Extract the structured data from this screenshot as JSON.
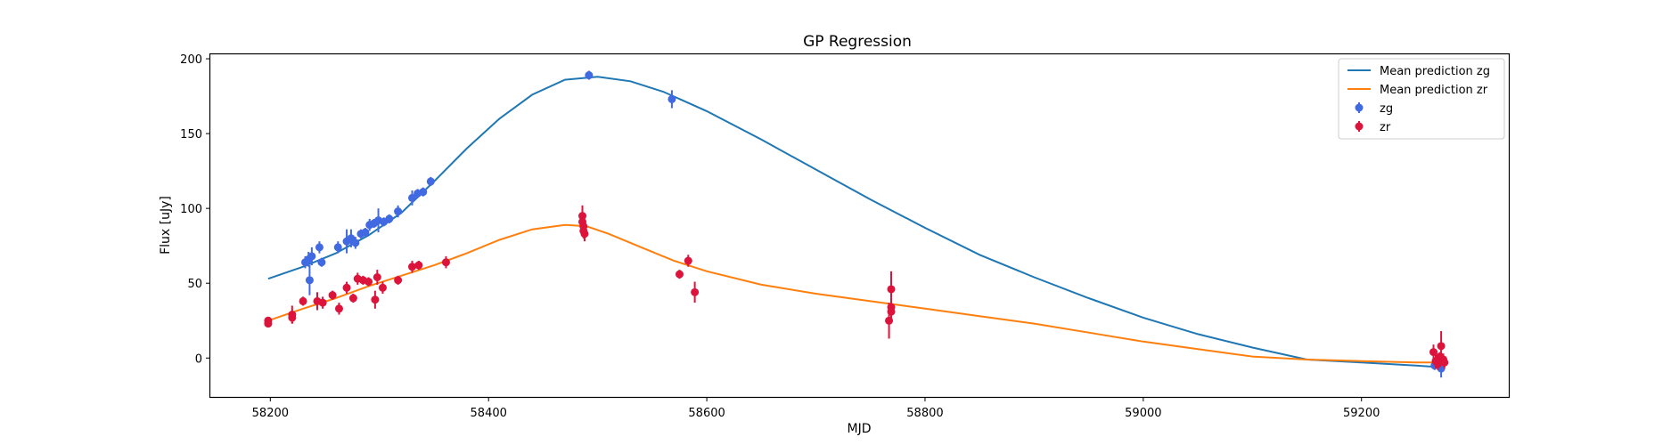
{
  "chart_data": {
    "type": "scatter",
    "title": "GP Regression",
    "xlabel": "MJD",
    "ylabel": "Flux [uJy]",
    "xlim": [
      58145,
      59335
    ],
    "ylim": [
      -26,
      203
    ],
    "x_ticks": [
      58200,
      58400,
      58600,
      58800,
      59000,
      59200
    ],
    "y_ticks": [
      0,
      50,
      100,
      150,
      200
    ],
    "grid": false,
    "legend_position": "top-right",
    "colors": {
      "mean_zg": "#1f77b4",
      "mean_zr": "#ff7f0e",
      "zg": "#4169e1",
      "zr": "#dc143c"
    },
    "lines": [
      {
        "name": "Mean prediction zg",
        "color": "#1f77b4",
        "x": [
          58198,
          58230,
          58260,
          58290,
          58320,
          58350,
          58380,
          58410,
          58440,
          58470,
          58500,
          58530,
          58560,
          58600,
          58650,
          58700,
          58750,
          58800,
          58850,
          58900,
          58950,
          59000,
          59050,
          59100,
          59150,
          59200,
          59250,
          59270
        ],
        "y": [
          53,
          61,
          70,
          82,
          97,
          118,
          140,
          160,
          176,
          186,
          188,
          185,
          178,
          165,
          146,
          126,
          106,
          87,
          69,
          54,
          40,
          27,
          16,
          7,
          -1,
          -3,
          -5,
          -6
        ]
      },
      {
        "name": "Mean prediction zr",
        "color": "#ff7f0e",
        "x": [
          58198,
          58230,
          58260,
          58290,
          58320,
          58350,
          58380,
          58410,
          58440,
          58470,
          58490,
          58510,
          58540,
          58570,
          58600,
          58650,
          58700,
          58750,
          58800,
          58850,
          58900,
          58950,
          59000,
          59050,
          59100,
          59150,
          59200,
          59250,
          59270
        ],
        "y": [
          25,
          33,
          40,
          48,
          55,
          62,
          70,
          79,
          86,
          89,
          88,
          83,
          74,
          65,
          58,
          49,
          43,
          38,
          33,
          28,
          23,
          17,
          11,
          6,
          1,
          -1,
          -2,
          -3,
          -3
        ]
      }
    ],
    "series": [
      {
        "name": "zg",
        "color": "#4169e1",
        "points": [
          {
            "x": 58232,
            "y": 64,
            "err": 4
          },
          {
            "x": 58235,
            "y": 66,
            "err": 5
          },
          {
            "x": 58238,
            "y": 68,
            "err": 6
          },
          {
            "x": 58236,
            "y": 52,
            "err": 10
          },
          {
            "x": 58245,
            "y": 74,
            "err": 4
          },
          {
            "x": 58247,
            "y": 64,
            "err": 3
          },
          {
            "x": 58262,
            "y": 74,
            "err": 4
          },
          {
            "x": 58270,
            "y": 78,
            "err": 8
          },
          {
            "x": 58274,
            "y": 80,
            "err": 6
          },
          {
            "x": 58278,
            "y": 77,
            "err": 4
          },
          {
            "x": 58283,
            "y": 83,
            "err": 3
          },
          {
            "x": 58287,
            "y": 84,
            "err": 3
          },
          {
            "x": 58291,
            "y": 89,
            "err": 4
          },
          {
            "x": 58295,
            "y": 90,
            "err": 3
          },
          {
            "x": 58299,
            "y": 92,
            "err": 8
          },
          {
            "x": 58304,
            "y": 91,
            "err": 3
          },
          {
            "x": 58309,
            "y": 93,
            "err": 3
          },
          {
            "x": 58317,
            "y": 98,
            "err": 4
          },
          {
            "x": 58330,
            "y": 107,
            "err": 5
          },
          {
            "x": 58335,
            "y": 110,
            "err": 3
          },
          {
            "x": 58340,
            "y": 111,
            "err": 3
          },
          {
            "x": 58347,
            "y": 118,
            "err": 3
          },
          {
            "x": 58492,
            "y": 189,
            "err": 3
          },
          {
            "x": 58568,
            "y": 173,
            "err": 6
          },
          {
            "x": 59267,
            "y": -5,
            "err": 3
          },
          {
            "x": 59273,
            "y": -7,
            "err": 6
          }
        ]
      },
      {
        "name": "zr",
        "color": "#dc143c",
        "points": [
          {
            "x": 58198,
            "y": 25,
            "err": 2
          },
          {
            "x": 58198,
            "y": 23,
            "err": 2
          },
          {
            "x": 58220,
            "y": 29,
            "err": 6
          },
          {
            "x": 58220,
            "y": 27,
            "err": 4
          },
          {
            "x": 58230,
            "y": 38,
            "err": 3
          },
          {
            "x": 58243,
            "y": 38,
            "err": 6
          },
          {
            "x": 58248,
            "y": 37,
            "err": 4
          },
          {
            "x": 58257,
            "y": 42,
            "err": 3
          },
          {
            "x": 58263,
            "y": 33,
            "err": 4
          },
          {
            "x": 58270,
            "y": 47,
            "err": 4
          },
          {
            "x": 58276,
            "y": 40,
            "err": 3
          },
          {
            "x": 58280,
            "y": 53,
            "err": 4
          },
          {
            "x": 58285,
            "y": 52,
            "err": 3
          },
          {
            "x": 58290,
            "y": 51,
            "err": 3
          },
          {
            "x": 58296,
            "y": 39,
            "err": 6
          },
          {
            "x": 58298,
            "y": 54,
            "err": 5
          },
          {
            "x": 58303,
            "y": 47,
            "err": 4
          },
          {
            "x": 58317,
            "y": 52,
            "err": 3
          },
          {
            "x": 58330,
            "y": 61,
            "err": 4
          },
          {
            "x": 58336,
            "y": 62,
            "err": 3
          },
          {
            "x": 58361,
            "y": 64,
            "err": 4
          },
          {
            "x": 58486,
            "y": 95,
            "err": 7
          },
          {
            "x": 58486,
            "y": 91,
            "err": 6
          },
          {
            "x": 58487,
            "y": 88,
            "err": 5
          },
          {
            "x": 58487,
            "y": 85,
            "err": 5
          },
          {
            "x": 58488,
            "y": 83,
            "err": 5
          },
          {
            "x": 58575,
            "y": 56,
            "err": 3
          },
          {
            "x": 58583,
            "y": 65,
            "err": 4
          },
          {
            "x": 58589,
            "y": 44,
            "err": 7
          },
          {
            "x": 58769,
            "y": 46,
            "err": 12
          },
          {
            "x": 58769,
            "y": 34,
            "err": 7
          },
          {
            "x": 58769,
            "y": 31,
            "err": 6
          },
          {
            "x": 58767,
            "y": 25,
            "err": 12
          },
          {
            "x": 59266,
            "y": 4,
            "err": 5
          },
          {
            "x": 59268,
            "y": -2,
            "err": 5
          },
          {
            "x": 59270,
            "y": -4,
            "err": 4
          },
          {
            "x": 59273,
            "y": 8,
            "err": 10
          },
          {
            "x": 59275,
            "y": -1,
            "err": 4
          },
          {
            "x": 59276,
            "y": -3,
            "err": 4
          },
          {
            "x": 59272,
            "y": 1,
            "err": 3
          }
        ]
      }
    ]
  }
}
